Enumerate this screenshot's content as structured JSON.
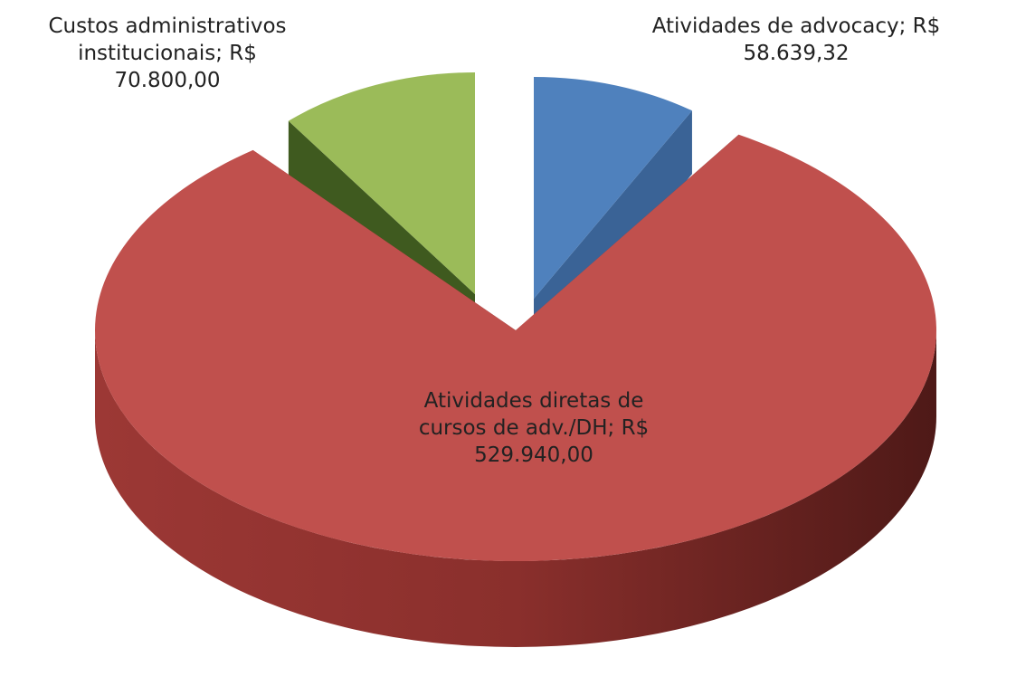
{
  "chart_data": {
    "type": "pie",
    "categories": [
      "Atividades de advocacy;",
      "Atividades diretas de cursos de adv./DH;",
      "Custos administrativos institucionais;"
    ],
    "values": [
      58639.32,
      529940.0,
      70800.0
    ],
    "value_labels": [
      "R$ 58.639,32",
      "R$ 529.940,00",
      "R$ 70.800,00"
    ],
    "colors": [
      "#4f81bd",
      "#c0504d",
      "#9bbb59"
    ]
  }
}
